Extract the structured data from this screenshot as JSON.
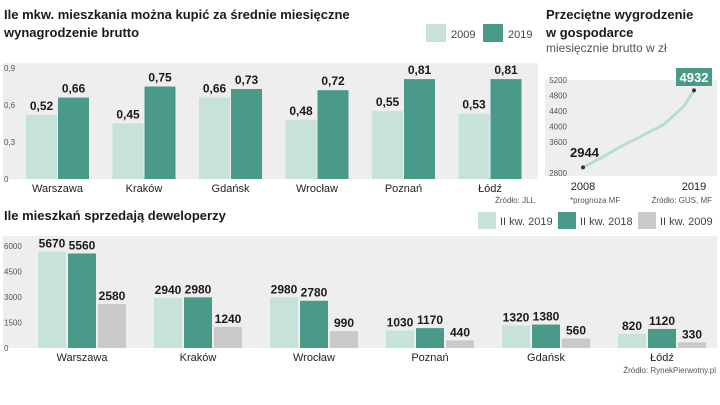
{
  "colors": {
    "c2009": "#c6e2d9",
    "c2019": "#4a9a89",
    "line": "#b8ddd3",
    "panel": "#eeeeee",
    "grey": "#c9c9c9"
  },
  "chart_data": [
    {
      "type": "bar",
      "title": "Ile mkw. mieszkania można kupić za średnie miesięczne wynagrodzenie brutto",
      "title_lines": [
        "Ile mkw. mieszkania można kupić za średnie miesięczne",
        "wynagrodzenie brutto"
      ],
      "categories": [
        "Warszawa",
        "Kraków",
        "Gdańsk",
        "Wrocław",
        "Poznań",
        "Łódź"
      ],
      "series": [
        {
          "name": "2009",
          "values": [
            0.52,
            0.45,
            0.66,
            0.48,
            0.55,
            0.53
          ],
          "labels": [
            "0,52",
            "0,45",
            "0,66",
            "0,48",
            "0,55",
            "0,53"
          ]
        },
        {
          "name": "2019",
          "values": [
            0.66,
            0.75,
            0.73,
            0.72,
            0.81,
            0.81
          ],
          "labels": [
            "0,66",
            "0,75",
            "0,73",
            "0,72",
            "0,81",
            "0,81"
          ]
        }
      ],
      "yticks": [
        0,
        0.3,
        0.6,
        0.9
      ],
      "ytick_labels": [
        "0",
        "0,3",
        "0,6",
        "0,9"
      ],
      "ylim": [
        0,
        0.9
      ],
      "legend": [
        "2009",
        "2019"
      ],
      "legend_position": "top-right",
      "source": "Źródło: JLL"
    },
    {
      "type": "line",
      "title": "Przeciętne wygrodzenie w gospodarce",
      "title_lines": [
        "Przeciętne wygrodzenie",
        "w gospodarce"
      ],
      "subtitle": "miesięcznie brutto w zł",
      "x": [
        2008,
        2019
      ],
      "x_labels": [
        "2008",
        "2019"
      ],
      "points": [
        {
          "x": 2008,
          "y": 2944
        },
        {
          "x": 2010,
          "y": 3220
        },
        {
          "x": 2012,
          "y": 3520
        },
        {
          "x": 2014,
          "y": 3780
        },
        {
          "x": 2016,
          "y": 4050
        },
        {
          "x": 2018,
          "y": 4530
        },
        {
          "x": 2019,
          "y": 4932
        }
      ],
      "start_label": "2944",
      "end_label": "4932",
      "yticks": [
        2800,
        3600,
        4000,
        4400,
        4800,
        5200
      ],
      "ylim": [
        2800,
        5200
      ],
      "note": "*prognoza MF",
      "source": "Źródło: GUS, MF"
    },
    {
      "type": "bar",
      "title": "Ile mieszkań sprzedają deweloperzy",
      "categories": [
        "Warszawa",
        "Kraków",
        "Wrocław",
        "Poznań",
        "Gdańsk",
        "Łódź"
      ],
      "series": [
        {
          "name": "II kw. 2019",
          "values": [
            5670,
            2940,
            2980,
            1030,
            1320,
            820
          ]
        },
        {
          "name": "II kw. 2018",
          "values": [
            5560,
            2980,
            2780,
            1170,
            1380,
            1120
          ]
        },
        {
          "name": "II kw. 2009",
          "values": [
            2580,
            1240,
            990,
            440,
            560,
            330
          ]
        }
      ],
      "yticks": [
        0,
        1500,
        3000,
        4500,
        6000
      ],
      "ylim": [
        0,
        6000
      ],
      "legend": [
        "II kw. 2019",
        "II kw. 2018",
        "II kw. 2009"
      ],
      "legend_position": "top-right",
      "source": "Źródło: RynekPierwotny.pl"
    }
  ]
}
